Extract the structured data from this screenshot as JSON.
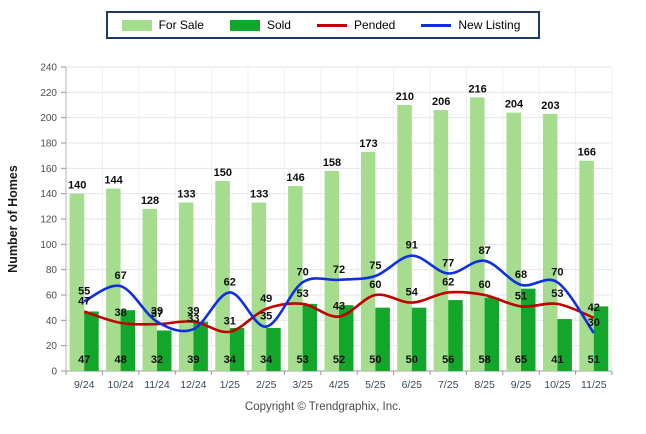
{
  "legend": {
    "items": [
      {
        "label": "For Sale",
        "type": "bar",
        "color": "#A5DC8E"
      },
      {
        "label": "Sold",
        "type": "bar",
        "color": "#12A62B"
      },
      {
        "label": "Pended",
        "type": "line",
        "color": "#C00000"
      },
      {
        "label": "New Listing",
        "type": "line",
        "color": "#1030E0"
      }
    ]
  },
  "footer": {
    "copyright": "Copyright © Trendgraphix, Inc."
  },
  "chart_data": {
    "type": "bar",
    "subtype": "grouped bars with smoothed overlay lines",
    "title": "",
    "xlabel": "",
    "ylabel": "Number of Homes",
    "ylim": [
      0,
      240
    ],
    "ytick_step": 20,
    "grid": true,
    "legend_position": "top",
    "categories": [
      "9/24",
      "10/24",
      "11/24",
      "12/24",
      "1/25",
      "2/25",
      "3/25",
      "4/25",
      "5/25",
      "6/25",
      "7/25",
      "8/25",
      "9/25",
      "10/25",
      "11/25"
    ],
    "series": [
      {
        "name": "For Sale",
        "type": "bar",
        "color": "#A5DC8E",
        "values": [
          140,
          144,
          128,
          133,
          150,
          133,
          146,
          158,
          173,
          210,
          206,
          216,
          204,
          203,
          166
        ]
      },
      {
        "name": "Sold",
        "type": "bar",
        "color": "#12A62B",
        "values": [
          47,
          48,
          32,
          39,
          34,
          34,
          53,
          52,
          50,
          50,
          56,
          58,
          65,
          41,
          51
        ]
      },
      {
        "name": "Pended",
        "type": "line",
        "color": "#C00000",
        "values": [
          47,
          38,
          37,
          39,
          31,
          49,
          53,
          43,
          60,
          54,
          62,
          60,
          51,
          53,
          42
        ]
      },
      {
        "name": "New Listing",
        "type": "line",
        "color": "#1030E0",
        "values": [
          55,
          67,
          39,
          33,
          62,
          35,
          70,
          72,
          75,
          91,
          77,
          87,
          68,
          70,
          30
        ]
      }
    ]
  }
}
